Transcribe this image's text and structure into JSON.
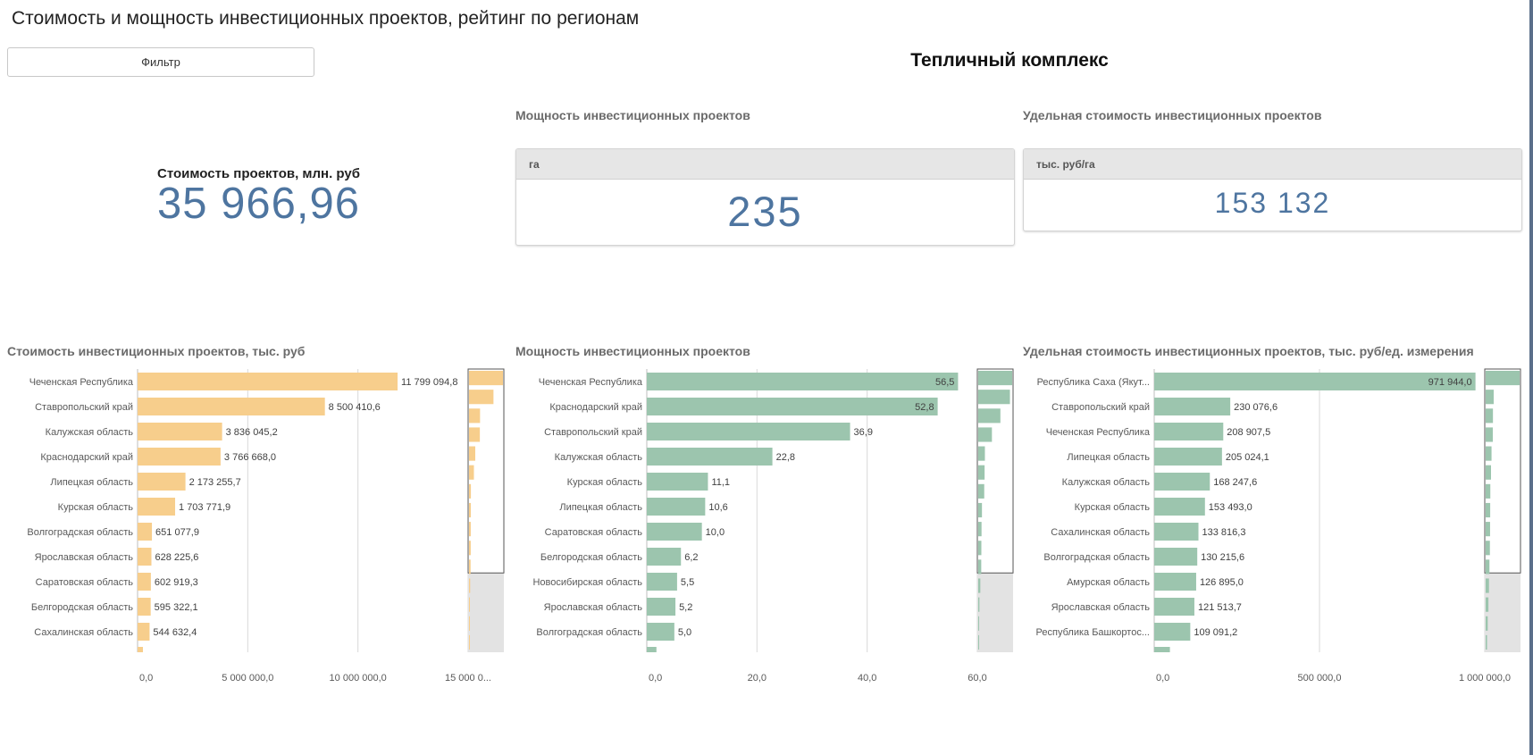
{
  "page": {
    "title": "Стоимость и мощность инвестиционных проектов, рейтинг по регионам",
    "filter_label": "Фильтр",
    "subtitle": "Тепличный комплекс"
  },
  "kpis": {
    "cost": {
      "label": "Стоимость проектов, млн. руб",
      "value": "35 966,96"
    },
    "capacity": {
      "title": "Мощность инвестиционных проектов",
      "unit": "га",
      "value": "235"
    },
    "unit_cost": {
      "title": "Удельная стоимость инвестиционных проектов",
      "unit": "тыс. руб/га",
      "value": "153 132"
    }
  },
  "colors": {
    "cost_bar": "#f7ce8c",
    "capacity_bar": "#9cc5ae",
    "unit_cost_bar": "#9cc5ae",
    "kpi_value": "#4e75a0"
  },
  "chart_data": [
    {
      "type": "bar",
      "orientation": "horizontal",
      "title": "Стоимость инвестиционных проектов, тыс. руб",
      "categories": [
        "Чеченская Республика",
        "Ставропольский край",
        "Калужская область",
        "Краснодарский край",
        "Липецкая область",
        "Курская область",
        "Волгоградская область",
        "Ярославская область",
        "Саратовская область",
        "Белгородская область",
        "Сахалинская область"
      ],
      "values": [
        11799094.8,
        8500410.6,
        3836045.2,
        3766668.0,
        2173255.7,
        1703771.9,
        651077.9,
        628225.6,
        602919.3,
        595322.1,
        544632.4
      ],
      "labels": [
        "11 799 094,8",
        "8 500 410,6",
        "3 836 045,2",
        "3 766 668,0",
        "2 173 255,7",
        "1 703 771,9",
        "651 077,9",
        "628 225,6",
        "602 919,3",
        "595 322,1",
        "544 632,4"
      ],
      "ticks": [
        "0,0",
        "5 000 000,0",
        "10 000 000,0",
        "15 000 0..."
      ],
      "tick_values": [
        0,
        5000000,
        10000000,
        15000000
      ],
      "xlim": [
        0,
        15000000
      ],
      "grid": true,
      "minimap": [
        11799094.8,
        8500410.6,
        3836045.2,
        3766668.0,
        2173255.7,
        1703771.9,
        651077.9,
        628225.6,
        602919.3,
        595322.1,
        544632.4,
        400000,
        300000,
        200000,
        150000
      ]
    },
    {
      "type": "bar",
      "orientation": "horizontal",
      "title": "Мощность инвестиционных проектов",
      "categories": [
        "Чеченская Республика",
        "Краснодарский край",
        "Ставропольский край",
        "Калужская область",
        "Курская область",
        "Липецкая область",
        "Саратовская область",
        "Белгородская область",
        "Новосибирская область",
        "Ярославская область",
        "Волгоградская область"
      ],
      "values": [
        56.5,
        52.8,
        36.9,
        22.8,
        11.1,
        10.6,
        10.0,
        6.2,
        5.5,
        5.2,
        5.0
      ],
      "labels": [
        "56,5",
        "52,8",
        "36,9",
        "22,8",
        "11,1",
        "10,6",
        "10,0",
        "6,2",
        "5,5",
        "5,2",
        "5,0"
      ],
      "ticks": [
        "0,0",
        "20,0",
        "40,0",
        "60,0"
      ],
      "tick_values": [
        0,
        20,
        40,
        60
      ],
      "xlim": [
        0,
        60
      ],
      "grid": true,
      "minimap": [
        56.5,
        52.8,
        36.9,
        22.8,
        11.1,
        10.6,
        10.0,
        6.2,
        5.5,
        5.2,
        5.0,
        3.5,
        2.0,
        1.5,
        1.0
      ]
    },
    {
      "type": "bar",
      "orientation": "horizontal",
      "title": "Удельная стоимость инвестиционных проектов, тыс. руб/ед. измерения",
      "categories": [
        "Республика Саха (Якут...",
        "Ставропольский край",
        "Чеченская Республика",
        "Липецкая область",
        "Калужская область",
        "Курская область",
        "Сахалинская область",
        "Волгоградская область",
        "Амурская область",
        "Ярославская область",
        "Республика Башкортос..."
      ],
      "values": [
        971944.0,
        230076.6,
        208907.5,
        205024.1,
        168247.6,
        153493.0,
        133816.3,
        130215.6,
        126895.0,
        121513.7,
        109091.2
      ],
      "labels": [
        "971 944,0",
        "230 076,6",
        "208 907,5",
        "205 024,1",
        "168 247,6",
        "153 493,0",
        "133 816,3",
        "130 215,6",
        "126 895,0",
        "121 513,7",
        "109 091,2"
      ],
      "ticks": [
        "0,0",
        "500 000,0",
        "1 000 000,0"
      ],
      "tick_values": [
        0,
        500000,
        1000000
      ],
      "xlim": [
        0,
        1000000
      ],
      "grid": true,
      "minimap": [
        971944.0,
        230076.6,
        208907.5,
        205024.1,
        168247.6,
        153493.0,
        133816.3,
        130215.6,
        126895.0,
        121513.7,
        109091.2,
        95000,
        80000,
        60000,
        40000
      ]
    }
  ]
}
